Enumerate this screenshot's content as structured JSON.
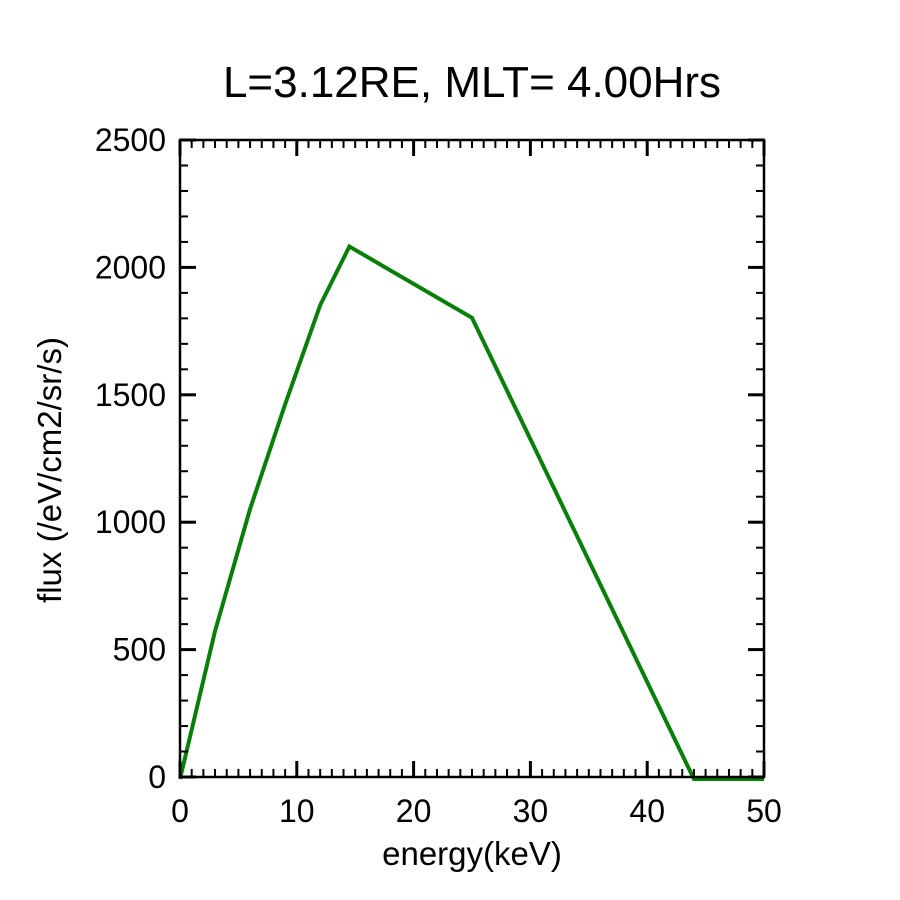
{
  "page": {
    "background_color": "#ffffff",
    "text_color": "#000000"
  },
  "chart_data": {
    "type": "line",
    "title": "L=3.12RE, MLT= 4.00Hrs",
    "xlabel": "energy(keV)",
    "ylabel": "flux (/eV/cm2/sr/s)",
    "xlim": [
      0,
      50
    ],
    "ylim": [
      0,
      2500
    ],
    "x_major_ticks": [
      0,
      10,
      20,
      30,
      40,
      50
    ],
    "x_minor_step": 1,
    "y_major_ticks": [
      0,
      500,
      1000,
      1500,
      2000,
      2500
    ],
    "y_minor_step": 100,
    "grid": "off",
    "legend": "none",
    "tick_direction": "in",
    "line_color": "#087f08",
    "axis_color": "#000000",
    "series": [
      {
        "name": "flux",
        "x": [
          0,
          3,
          6,
          9,
          12,
          14.5,
          25,
          44,
          50
        ],
        "y": [
          0,
          580,
          1060,
          1470,
          1860,
          2090,
          1810,
          0,
          0
        ]
      }
    ]
  }
}
